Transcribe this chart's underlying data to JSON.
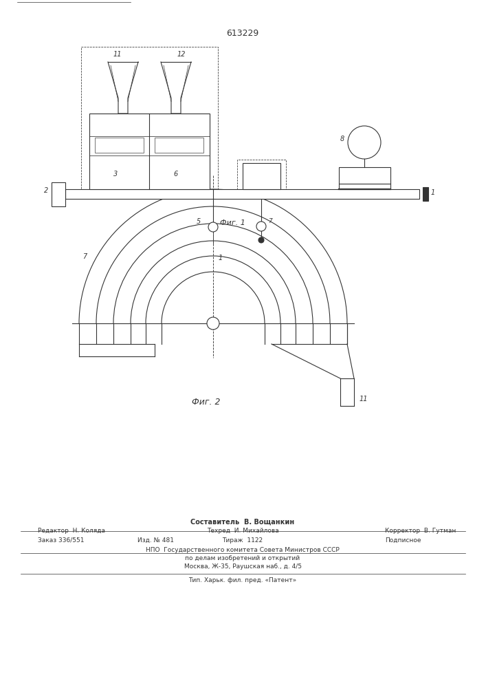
{
  "patent_number": "613229",
  "fig1_caption": "Фиг. 1",
  "fig2_caption": "Фиг. 2",
  "footer_composer": "Составитель  В. Вощанкин",
  "footer_editor": "Редактор  Н. Коляда",
  "footer_techred": "Техред  И. Михайлова",
  "footer_corrector": "Корректор  В. Гутман",
  "footer_order": "Заказ 336/551",
  "footer_izd": "Изд. № 481",
  "footer_tirazh": "Тираж  1122",
  "footer_podp": "Подписное",
  "footer_npo": "НПО  Государственного комитета Совета Министров СССР",
  "footer_npo2": "по делам изобретений и открытий",
  "footer_addr": "Москва, Ж-35, Раушская наб., д. 4/5",
  "footer_tip": "Тип. Харьк. фил. пред. «Патент»",
  "bg_color": "#ffffff",
  "line_color": "#333333",
  "line_width": 0.8
}
